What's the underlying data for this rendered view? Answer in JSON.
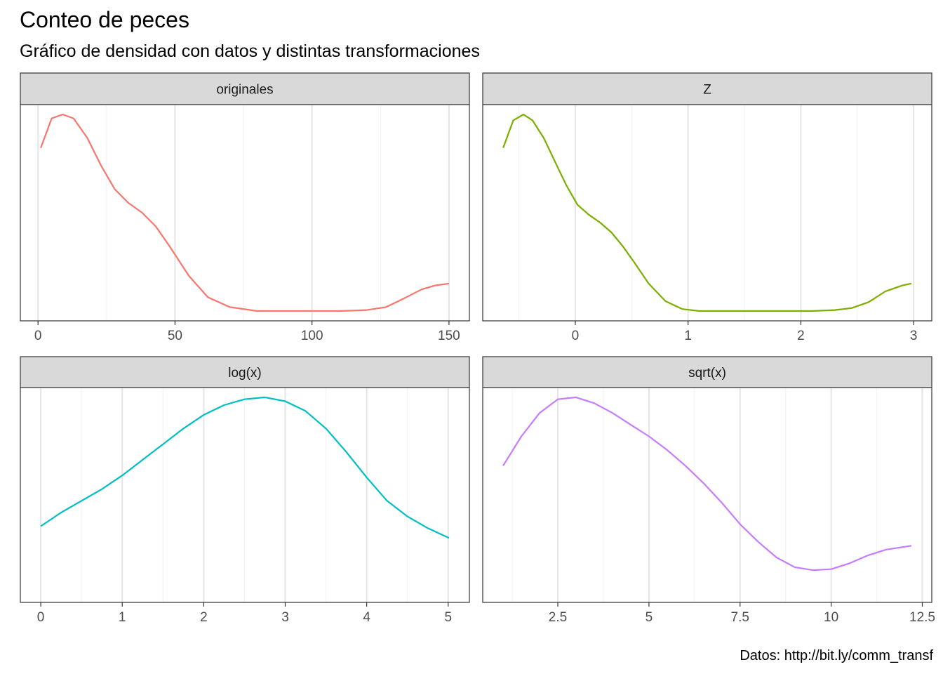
{
  "figure": {
    "title": "Conteo de peces",
    "subtitle": "Gráfico de densidad con datos y distintas transformaciones",
    "caption": "Datos: http://bit.ly/comm_transf"
  },
  "colors": {
    "strip_background": "#d9d9d9",
    "panel_border": "#333333",
    "grid_major": "#e5e5e5",
    "grid_minor": "#f2f2f2"
  },
  "chart_data": [
    {
      "type": "line",
      "panel": "originales",
      "color": "#F8766D",
      "xlim": [
        1,
        150
      ],
      "x_ticks": [
        0,
        50,
        100,
        150
      ],
      "y_axis_shown": false,
      "grid": "vertical",
      "x": [
        1,
        5,
        9,
        13,
        18,
        23,
        28,
        33,
        38,
        43,
        48,
        55,
        62,
        70,
        80,
        90,
        100,
        110,
        120,
        127,
        133,
        140,
        145,
        150
      ],
      "y": [
        0.83,
        0.98,
        1.0,
        0.98,
        0.88,
        0.74,
        0.62,
        0.55,
        0.5,
        0.43,
        0.33,
        0.18,
        0.07,
        0.02,
        0.0,
        0.0,
        0.0,
        0.0,
        0.005,
        0.02,
        0.06,
        0.11,
        0.13,
        0.14
      ]
    },
    {
      "type": "line",
      "panel": "Z",
      "color": "#7CAE00",
      "xlim": [
        -0.64,
        2.98
      ],
      "x_ticks": [
        0,
        1,
        2,
        3
      ],
      "y_axis_shown": false,
      "grid": "vertical",
      "x": [
        -0.64,
        -0.55,
        -0.46,
        -0.38,
        -0.28,
        -0.18,
        -0.08,
        0.02,
        0.12,
        0.22,
        0.32,
        0.42,
        0.52,
        0.65,
        0.8,
        0.95,
        1.1,
        1.3,
        1.5,
        1.7,
        1.9,
        2.1,
        2.3,
        2.45,
        2.6,
        2.75,
        2.9,
        2.98
      ],
      "y": [
        0.83,
        0.97,
        1.0,
        0.97,
        0.88,
        0.76,
        0.64,
        0.54,
        0.49,
        0.45,
        0.4,
        0.33,
        0.25,
        0.14,
        0.05,
        0.01,
        0.0,
        0.0,
        0.0,
        0.0,
        0.0,
        0.0,
        0.005,
        0.015,
        0.045,
        0.1,
        0.13,
        0.14
      ]
    },
    {
      "type": "line",
      "panel": "log(x)",
      "color": "#00BFC4",
      "xlim": [
        0,
        5.01
      ],
      "x_ticks": [
        0,
        1,
        2,
        3,
        4,
        5
      ],
      "y_axis_shown": false,
      "grid": "vertical",
      "x": [
        0,
        0.25,
        0.5,
        0.75,
        1.0,
        1.25,
        1.5,
        1.75,
        2.0,
        2.25,
        2.5,
        2.75,
        3.0,
        3.25,
        3.5,
        3.75,
        4.0,
        4.25,
        4.5,
        4.75,
        5.01
      ],
      "y": [
        0.34,
        0.41,
        0.47,
        0.53,
        0.6,
        0.68,
        0.76,
        0.84,
        0.91,
        0.96,
        0.99,
        1.0,
        0.98,
        0.93,
        0.84,
        0.72,
        0.59,
        0.47,
        0.39,
        0.33,
        0.28
      ]
    },
    {
      "type": "line",
      "panel": "sqrt(x)",
      "color": "#C77CFF",
      "xlim": [
        1,
        12.2
      ],
      "x_ticks": [
        2.5,
        5.0,
        7.5,
        10.0,
        12.5
      ],
      "y_axis_shown": false,
      "grid": "vertical",
      "x": [
        1,
        1.5,
        2.0,
        2.5,
        3.0,
        3.5,
        4.0,
        4.5,
        5.0,
        5.5,
        6.0,
        6.5,
        7.0,
        7.5,
        8.0,
        8.5,
        9.0,
        9.5,
        10.0,
        10.5,
        11.0,
        11.5,
        12.2
      ],
      "y": [
        0.65,
        0.8,
        0.92,
        0.99,
        1.0,
        0.97,
        0.92,
        0.86,
        0.8,
        0.73,
        0.65,
        0.56,
        0.46,
        0.35,
        0.26,
        0.18,
        0.13,
        0.115,
        0.12,
        0.15,
        0.19,
        0.22,
        0.24
      ]
    }
  ]
}
